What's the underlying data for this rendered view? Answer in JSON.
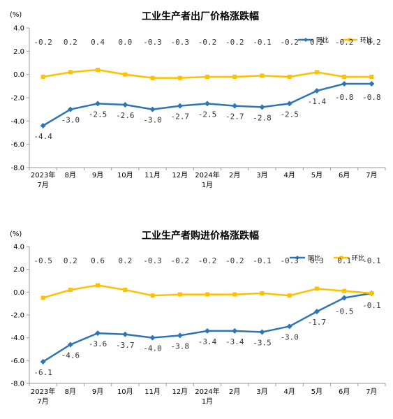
{
  "chart_data": [
    {
      "type": "line",
      "title": "工业生产者出厂价格涨跌幅",
      "ylabel": "(%)",
      "ylim": [
        -8.0,
        4.0
      ],
      "yticks": [
        "4.0",
        "2.0",
        "0.0",
        "-2.0",
        "-4.0",
        "-6.0",
        "-8.0"
      ],
      "categories": [
        [
          "2023年",
          "7月"
        ],
        [
          "8月"
        ],
        [
          "9月"
        ],
        [
          "10月"
        ],
        [
          "11月"
        ],
        [
          "12月"
        ],
        [
          "2024年",
          "1月"
        ],
        [
          "2月"
        ],
        [
          "3月"
        ],
        [
          "4月"
        ],
        [
          "5月"
        ],
        [
          "6月"
        ],
        [
          "7月"
        ]
      ],
      "legend_position": "top-right",
      "series": [
        {
          "name": "同比",
          "color": "#2e75b6",
          "values": [
            -4.4,
            -3.0,
            -2.5,
            -2.6,
            -3.0,
            -2.7,
            -2.5,
            -2.7,
            -2.8,
            -2.5,
            -1.4,
            -0.8,
            -0.8
          ],
          "labels": [
            "-4.4",
            "-3.0",
            "-2.5",
            "-2.6",
            "-3.0",
            "-2.7",
            "-2.5",
            "-2.7",
            "-2.8",
            "-2.5",
            "-1.4",
            "-0.8",
            "-0.8"
          ]
        },
        {
          "name": "环比",
          "color": "#ffc000",
          "values": [
            -0.2,
            0.2,
            0.4,
            0.0,
            -0.3,
            -0.3,
            -0.2,
            -0.2,
            -0.1,
            -0.2,
            0.2,
            -0.2,
            -0.2
          ],
          "labels": [
            "-0.2",
            "0.2",
            "0.4",
            "0.0",
            "-0.3",
            "-0.3",
            "-0.2",
            "-0.2",
            "-0.1",
            "-0.2",
            "0.2",
            "-0.2",
            "-0.2"
          ]
        }
      ]
    },
    {
      "type": "line",
      "title": "工业生产者购进价格涨跌幅",
      "ylabel": "(%)",
      "ylim": [
        -8.0,
        4.0
      ],
      "yticks": [
        "4.0",
        "2.0",
        "0.0",
        "-2.0",
        "-4.0",
        "-6.0",
        "-8.0"
      ],
      "categories": [
        [
          "2023年",
          "7月"
        ],
        [
          "8月"
        ],
        [
          "9月"
        ],
        [
          "10月"
        ],
        [
          "11月"
        ],
        [
          "12月"
        ],
        [
          "2024年",
          "1月"
        ],
        [
          "2月"
        ],
        [
          "3月"
        ],
        [
          "4月"
        ],
        [
          "5月"
        ],
        [
          "6月"
        ],
        [
          "7月"
        ]
      ],
      "legend_position": "top-right",
      "series": [
        {
          "name": "同比",
          "color": "#2e75b6",
          "values": [
            -6.1,
            -4.6,
            -3.6,
            -3.7,
            -4.0,
            -3.8,
            -3.4,
            -3.4,
            -3.5,
            -3.0,
            -1.7,
            -0.5,
            -0.1
          ],
          "labels": [
            "-6.1",
            "-4.6",
            "-3.6",
            "-3.7",
            "-4.0",
            "-3.8",
            "-3.4",
            "-3.4",
            "-3.5",
            "-3.0",
            "-1.7",
            "-0.5",
            "-0.1"
          ]
        },
        {
          "name": "环比",
          "color": "#ffc000",
          "values": [
            -0.5,
            0.2,
            0.6,
            0.2,
            -0.3,
            -0.2,
            -0.2,
            -0.2,
            -0.1,
            -0.3,
            0.3,
            0.1,
            -0.1
          ],
          "labels": [
            "-0.5",
            "0.2",
            "0.6",
            "0.2",
            "-0.3",
            "-0.2",
            "-0.2",
            "-0.2",
            "-0.1",
            "-0.3",
            "0.3",
            "0.1",
            "-0.1"
          ]
        }
      ]
    }
  ]
}
